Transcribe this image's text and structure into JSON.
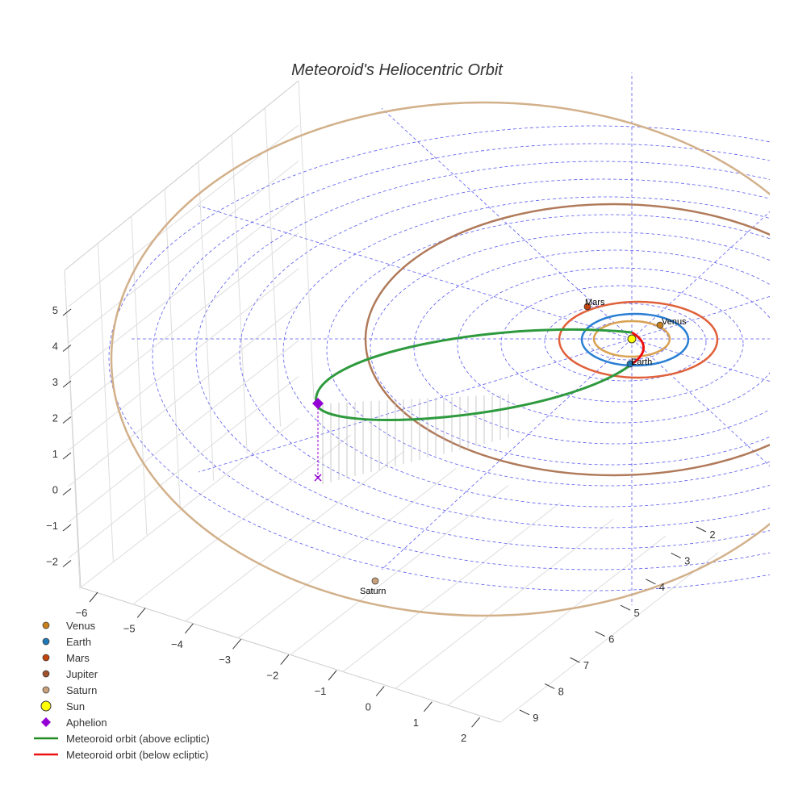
{
  "chart_data": {
    "type": "scatter3d",
    "title": "Meteoroid's Heliocentric Orbit",
    "axes": {
      "x": {
        "ticks": [
          "−6",
          "−5",
          "−4",
          "−3",
          "−2",
          "−1",
          "0",
          "1",
          "2"
        ]
      },
      "y": {
        "ticks": [
          "2",
          "3",
          "4",
          "5",
          "6",
          "7",
          "8",
          "9"
        ]
      },
      "z": {
        "ticks": [
          "5",
          "4",
          "3",
          "2",
          "1",
          "0",
          "−1",
          "−2"
        ]
      }
    },
    "planets": [
      {
        "name": "Venus",
        "color": "#c8801e",
        "orbit_color": "#d9a253",
        "label": "Venus"
      },
      {
        "name": "Earth",
        "color": "#1f77b4",
        "orbit_color": "#2a7fd4",
        "label": "Earth"
      },
      {
        "name": "Mars",
        "color": "#c1440e",
        "orbit_color": "#e0603a",
        "label": "Mars"
      },
      {
        "name": "Jupiter",
        "color": "#a0522d",
        "orbit_color": "#b07a5a"
      },
      {
        "name": "Saturn",
        "color": "#c8a07a",
        "orbit_color": "#d2b08a",
        "label": "Saturn"
      }
    ],
    "legend": [
      {
        "label": "Venus",
        "kind": "dot",
        "color": "#c8801e"
      },
      {
        "label": "Earth",
        "kind": "dot",
        "color": "#1f77b4"
      },
      {
        "label": "Mars",
        "kind": "dot",
        "color": "#c1440e"
      },
      {
        "label": "Jupiter",
        "kind": "dot",
        "color": "#a0522d"
      },
      {
        "label": "Saturn",
        "kind": "dot",
        "color": "#c8a07a"
      },
      {
        "label": "Sun",
        "kind": "sun",
        "color": "#ffff00"
      },
      {
        "label": "Aphelion",
        "kind": "diamond",
        "color": "#9400d3"
      },
      {
        "label": "Meteoroid orbit (above ecliptic)",
        "kind": "line",
        "color": "#228b22"
      },
      {
        "label": "Meteoroid orbit (below ecliptic)",
        "kind": "line",
        "color": "#ee1111"
      }
    ],
    "legend_position": "bottom-left"
  }
}
